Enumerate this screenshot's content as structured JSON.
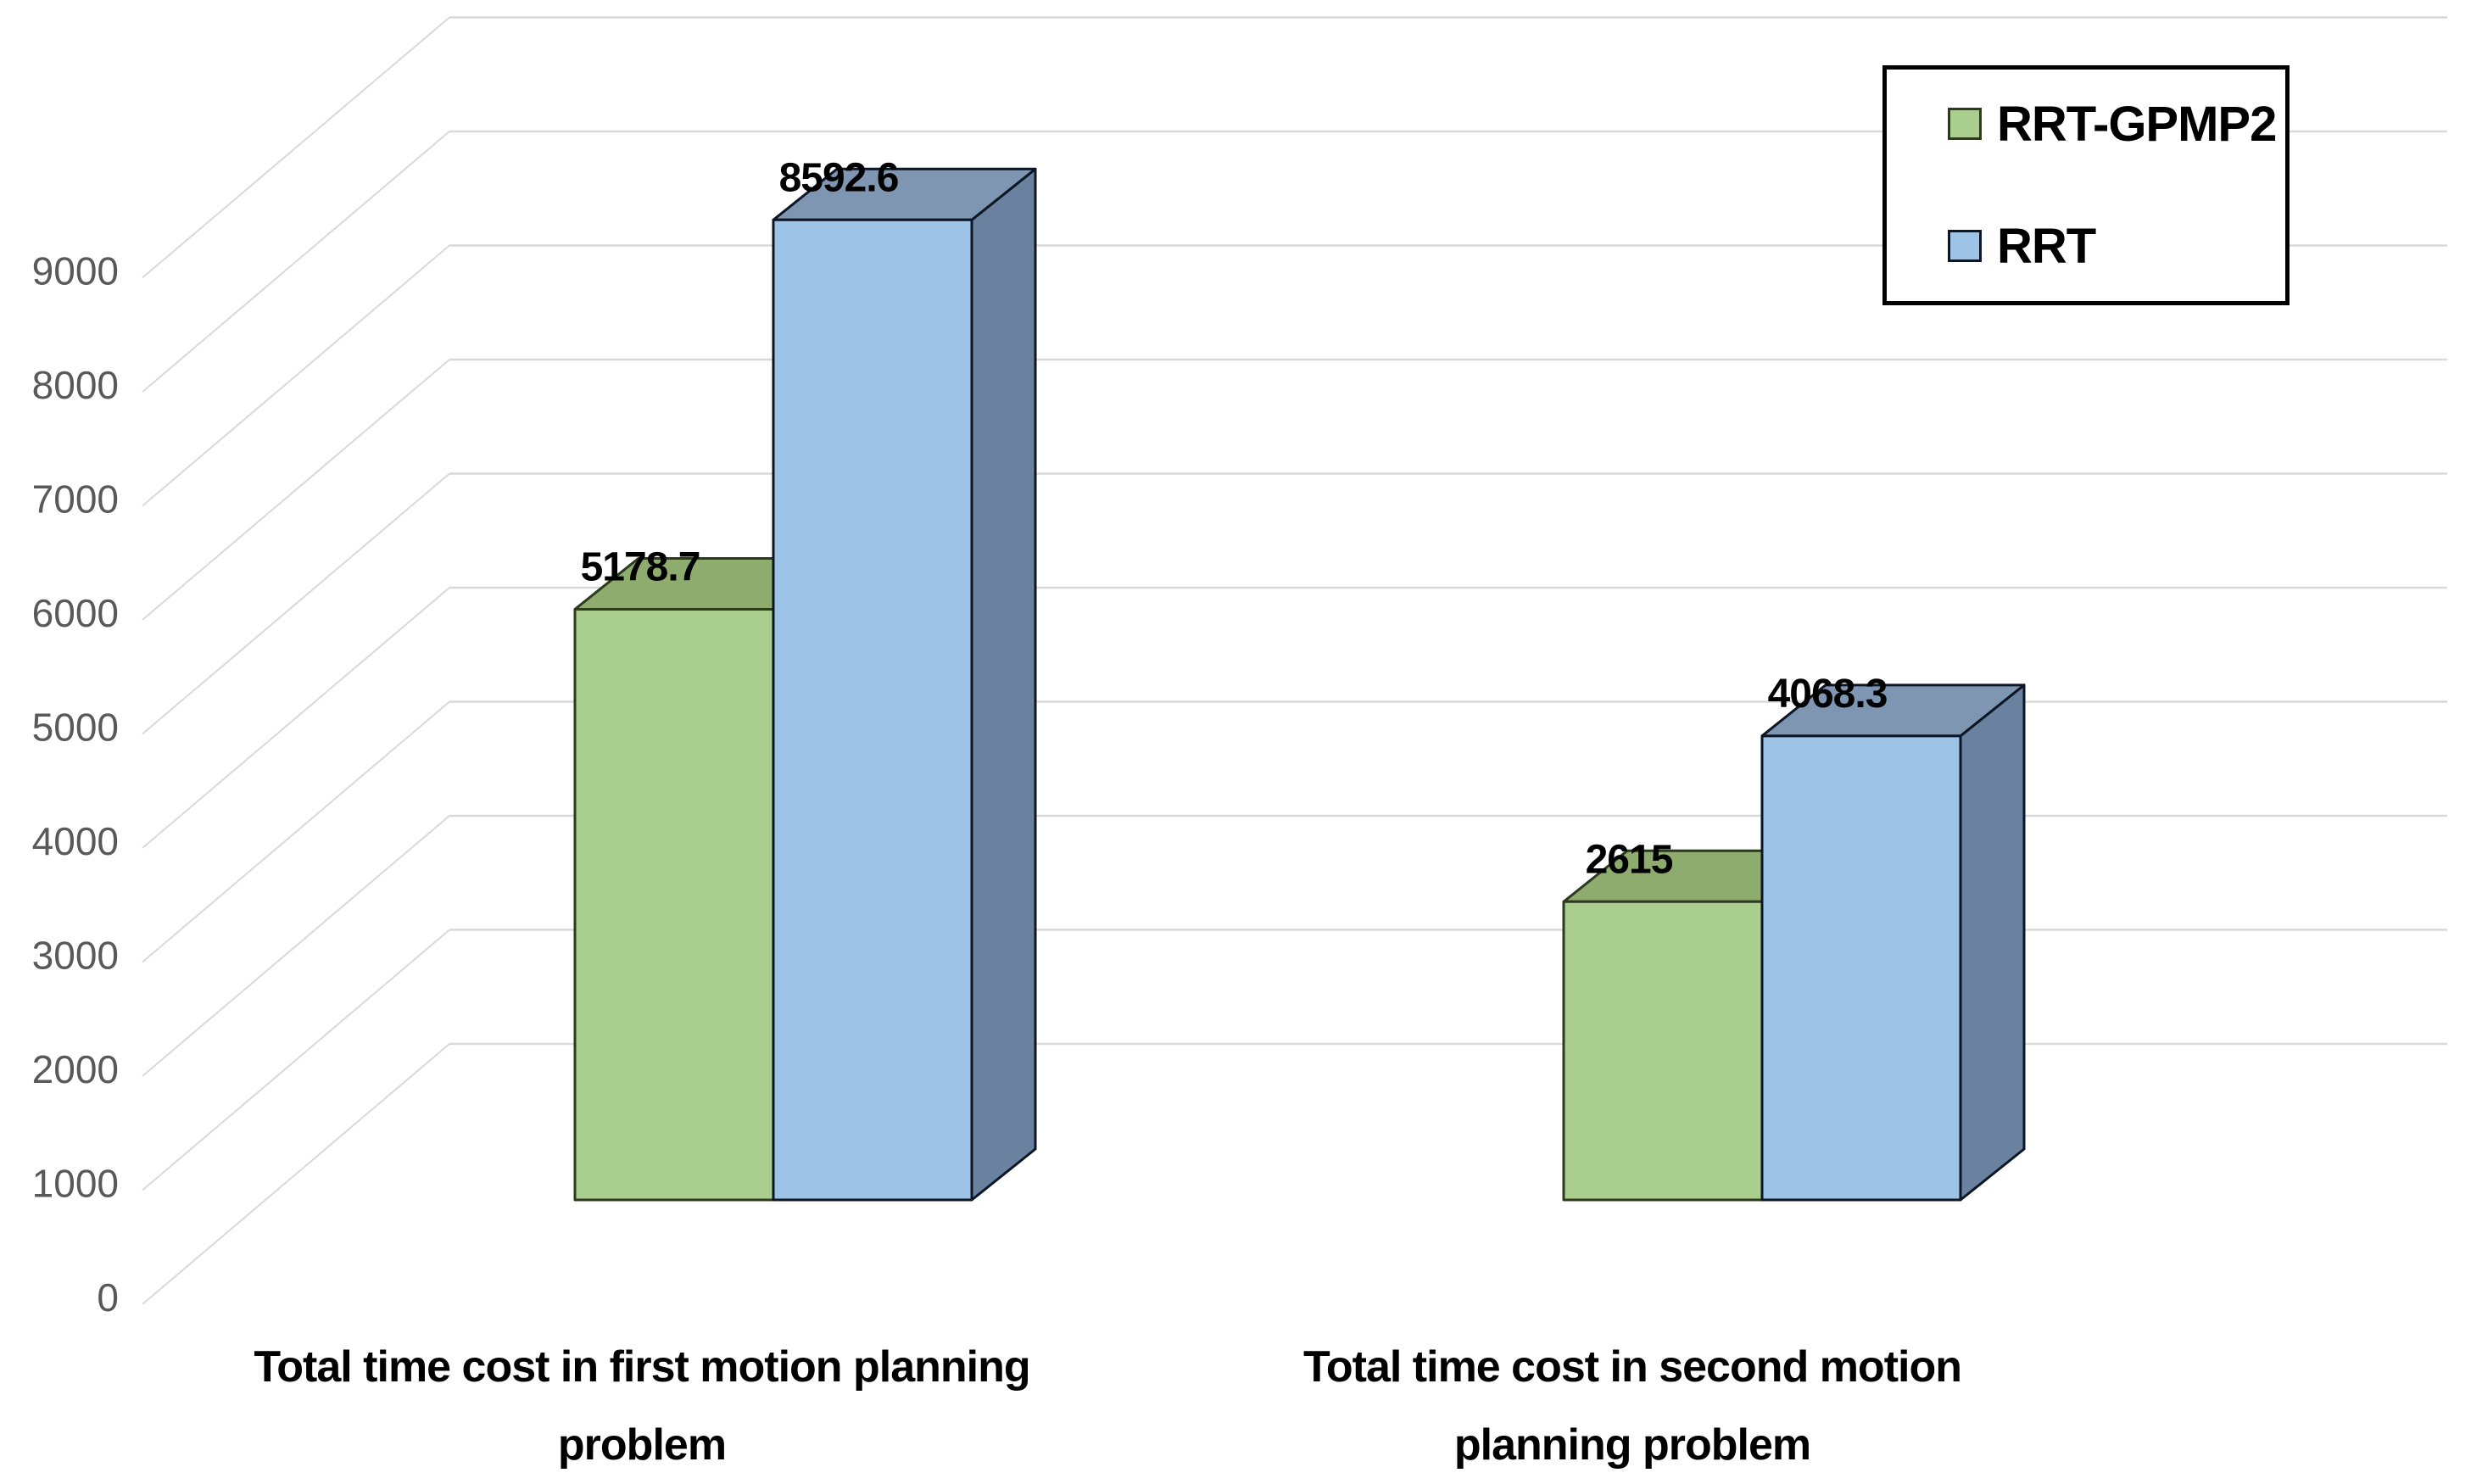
{
  "chart_data": {
    "type": "bar",
    "projection": "3d-clustered-column",
    "title": "",
    "categories": [
      "Total time cost in first motion planning problem",
      "Total time cost in second motion planning problem"
    ],
    "category_label_lines": [
      [
        "Total time cost in first motion planning",
        "problem"
      ],
      [
        "Total time cost in second motion",
        "planning problem"
      ]
    ],
    "series": [
      {
        "name": "RRT-GPMP2",
        "values": [
          5178.7,
          2615
        ],
        "data_labels": [
          "5178.7",
          "2615"
        ]
      },
      {
        "name": "RRT",
        "values": [
          8592.6,
          4068.3
        ],
        "data_labels": [
          "8592.6",
          "4068.3"
        ]
      }
    ],
    "y_axis": {
      "min": 0,
      "max": 9000,
      "tick_step": 1000,
      "tick_labels": [
        "0",
        "1000",
        "2000",
        "3000",
        "4000",
        "5000",
        "6000",
        "7000",
        "8000",
        "9000"
      ]
    },
    "grid": true,
    "legend": {
      "position": "top-right",
      "entries": [
        {
          "label": "RRT-GPMP2"
        },
        {
          "label": "RRT"
        }
      ]
    }
  },
  "colors": {
    "background": "#FFFFFF",
    "gridline": "#D9D9D9",
    "tick_text": "#595959",
    "data_label_text": "#000000",
    "category_text": "#000000",
    "legend_border": "#000000",
    "legend_background": "#FFFFFF",
    "series": [
      {
        "front": "#A9CE8E",
        "top": "#8DAC6D",
        "side": "#7C9A5E",
        "stroke": "#2E3A1E"
      },
      {
        "front": "#9DC3E6",
        "top": "#7E96B2",
        "side": "#6A82A0",
        "stroke": "#0D1625"
      }
    ]
  }
}
